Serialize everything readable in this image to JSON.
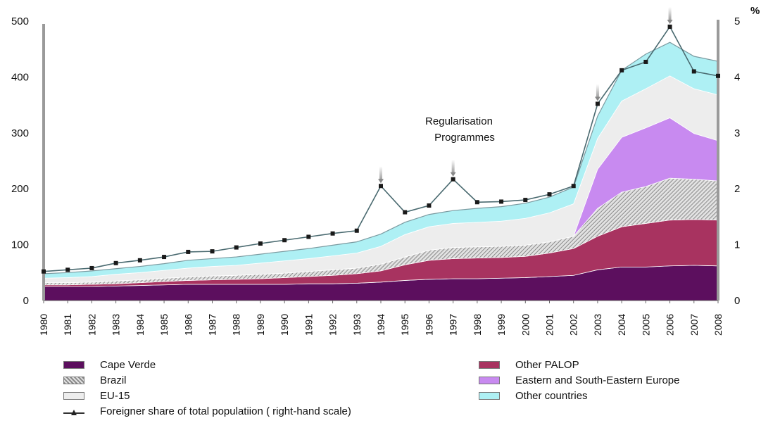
{
  "chart_data": {
    "type": "area",
    "stacked": true,
    "categories": [
      "1980",
      "1981",
      "1982",
      "1983",
      "1984",
      "1985",
      "1986",
      "1987",
      "1988",
      "1989",
      "1990",
      "1991",
      "1992",
      "1993",
      "1994",
      "1995",
      "1996",
      "1997",
      "1998",
      "1999",
      "2000",
      "2001",
      "2002",
      "2003",
      "2004",
      "2005",
      "2006",
      "2007",
      "2008"
    ],
    "ylim": [
      0,
      500
    ],
    "y_ticks": [
      "0",
      "100",
      "200",
      "300",
      "400",
      "500"
    ],
    "y2lim": [
      0,
      5
    ],
    "y2_ticks": [
      "0",
      "1",
      "2",
      "3",
      "4",
      "5"
    ],
    "y2_unit": "%",
    "grid": false,
    "annotation": {
      "line1": "Regularisation",
      "line2": "Programmes",
      "years": [
        "1994",
        "1997",
        "2003",
        "2006"
      ]
    },
    "series": [
      {
        "name": "Cape Verde",
        "color": "#5c0f5e",
        "values": [
          25,
          25,
          25,
          26,
          27,
          28,
          29,
          29,
          29,
          29,
          29,
          30,
          30,
          31,
          33,
          36,
          38,
          39,
          39,
          40,
          41,
          43,
          45,
          55,
          60,
          60,
          62,
          63,
          62
        ]
      },
      {
        "name": "Other PALOP",
        "color": "#a83360",
        "values": [
          3,
          3,
          4,
          4,
          5,
          6,
          7,
          8,
          9,
          10,
          12,
          13,
          15,
          17,
          20,
          28,
          34,
          36,
          37,
          37,
          38,
          42,
          48,
          60,
          72,
          78,
          82,
          82,
          82
        ]
      },
      {
        "name": "Brazil",
        "color": "#c8c8c8",
        "values": [
          4,
          4,
          4,
          5,
          5,
          6,
          6,
          7,
          7,
          8,
          8,
          9,
          10,
          10,
          12,
          14,
          18,
          20,
          20,
          20,
          20,
          20,
          22,
          50,
          62,
          66,
          75,
          72,
          70
        ]
      },
      {
        "name": "Eastern and South-Eastern Europe",
        "color": "#c88af0",
        "values": [
          0,
          0,
          0,
          0,
          0,
          0,
          0,
          0,
          0,
          0,
          0,
          0,
          0,
          0,
          0,
          0,
          0,
          0,
          0,
          0,
          0,
          0,
          0,
          70,
          98,
          105,
          108,
          82,
          72
        ]
      },
      {
        "name": "EU-15",
        "color": "#ededed",
        "values": [
          8,
          9,
          10,
          12,
          13,
          14,
          16,
          17,
          18,
          20,
          22,
          23,
          25,
          27,
          32,
          40,
          42,
          43,
          44,
          45,
          48,
          52,
          58,
          55,
          65,
          70,
          75,
          80,
          82
        ]
      },
      {
        "name": "Other countries",
        "color": "#aef0f4",
        "values": [
          8,
          9,
          10,
          10,
          11,
          12,
          14,
          14,
          15,
          16,
          17,
          18,
          19,
          20,
          22,
          22,
          22,
          23,
          25,
          26,
          27,
          28,
          30,
          40,
          55,
          62,
          60,
          58,
          60
        ]
      }
    ],
    "line_series": {
      "name": "Foreigner share of total populatiion ( right-hand scale)",
      "axis": "right",
      "values": [
        0.52,
        0.55,
        0.58,
        0.67,
        0.72,
        0.78,
        0.87,
        0.88,
        0.95,
        1.02,
        1.08,
        1.14,
        1.2,
        1.25,
        2.05,
        1.58,
        1.7,
        2.17,
        1.76,
        1.77,
        1.8,
        1.9,
        2.05,
        3.52,
        4.12,
        4.27,
        4.9,
        4.1,
        4.02
      ]
    }
  },
  "legend": {
    "items": [
      {
        "label": "Cape Verde",
        "color": "#5c0f5e"
      },
      {
        "label": "Brazil",
        "color": "#c8c8c8"
      },
      {
        "label": "EU-15",
        "color": "#ededed"
      },
      {
        "label": "Foreigner share of total populatiion ( right-hand scale)",
        "color": "#333333"
      },
      {
        "label": "Other PALOP",
        "color": "#a83360"
      },
      {
        "label": "Eastern and South-Eastern Europe",
        "color": "#c88af0"
      },
      {
        "label": "Other countries",
        "color": "#aef0f4"
      }
    ]
  }
}
